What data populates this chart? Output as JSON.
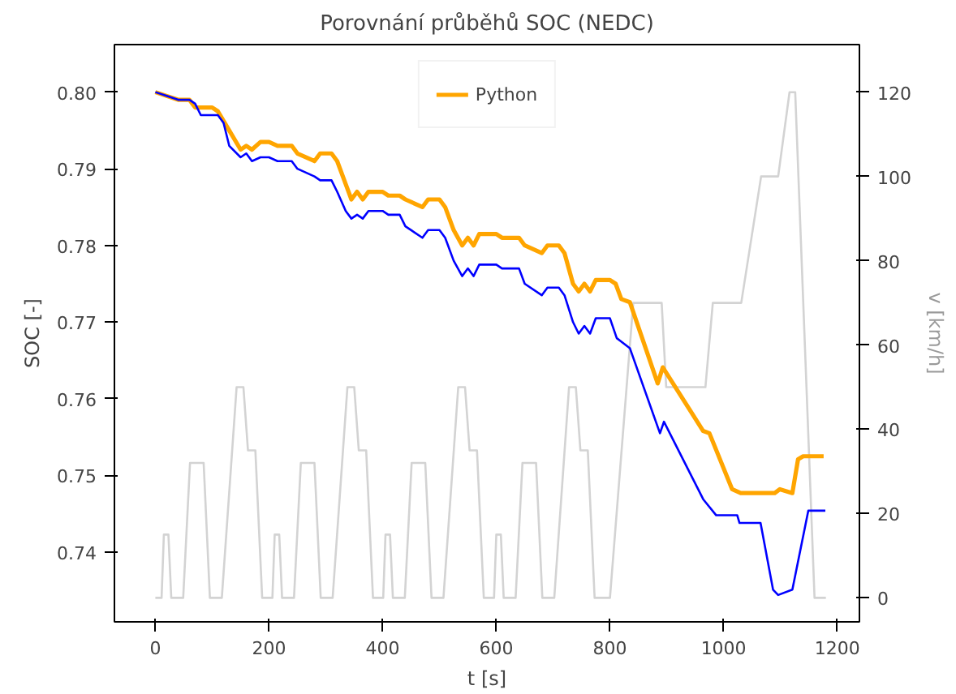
{
  "chart_data": {
    "type": "line",
    "title": "Porovnání průběhů SOC (NEDC)",
    "xlabel": "t [s]",
    "ylabel": "SOC [-]",
    "y2label": "v [km/h]",
    "xlim": [
      -72,
      1239
    ],
    "xticks": [
      0,
      200,
      400,
      600,
      800,
      1000,
      1200
    ],
    "ylim": [
      0.7309,
      0.8062
    ],
    "yticks": [
      {
        "value": 0.74,
        "label": "0.74"
      },
      {
        "value": 0.75,
        "label": "0.75"
      },
      {
        "value": 0.76,
        "label": "0.76"
      },
      {
        "value": 0.77,
        "label": "0.77"
      },
      {
        "value": 0.78,
        "label": "0.78"
      },
      {
        "value": 0.79,
        "label": "0.79"
      },
      {
        "value": 0.8,
        "label": "0.80"
      }
    ],
    "y2lim": [
      -5.7,
      131.3
    ],
    "y2ticks": [
      0,
      20,
      40,
      60,
      80,
      100,
      120
    ],
    "grid": false,
    "legend": "top",
    "marker": "none",
    "line_style": "solid",
    "series": [
      {
        "name": "Python",
        "color": "#ffa500",
        "x": [
          0,
          20,
          40,
          60,
          70,
          80,
          100,
          110,
          130,
          150,
          160,
          170,
          185,
          200,
          215,
          240,
          250,
          280,
          290,
          310,
          320,
          335,
          345,
          355,
          365,
          375,
          400,
          410,
          430,
          440,
          470,
          480,
          500,
          510,
          525,
          540,
          550,
          560,
          570,
          600,
          610,
          640,
          650,
          680,
          690,
          710,
          720,
          735,
          745,
          755,
          765,
          775,
          800,
          810,
          820,
          835,
          884,
          893,
          964,
          975,
          1015,
          1030,
          1090,
          1099,
          1121,
          1131,
          1140,
          1176
        ],
        "values": [
          0.8,
          0.7995,
          0.799,
          0.799,
          0.798,
          0.798,
          0.798,
          0.7975,
          0.795,
          0.7925,
          0.793,
          0.7925,
          0.7935,
          0.7935,
          0.793,
          0.793,
          0.792,
          0.791,
          0.792,
          0.792,
          0.791,
          0.788,
          0.786,
          0.787,
          0.786,
          0.787,
          0.787,
          0.7865,
          0.7865,
          0.786,
          0.785,
          0.786,
          0.786,
          0.785,
          0.782,
          0.78,
          0.781,
          0.78,
          0.7815,
          0.7815,
          0.781,
          0.781,
          0.78,
          0.779,
          0.78,
          0.78,
          0.779,
          0.775,
          0.774,
          0.775,
          0.774,
          0.7755,
          0.7755,
          0.775,
          0.773,
          0.7726,
          0.762,
          0.7641,
          0.7558,
          0.7555,
          0.7482,
          0.7477,
          0.7477,
          0.7482,
          0.7477,
          0.7521,
          0.7525,
          0.7525
        ]
      },
      {
        "color": "#0000ff",
        "x": [
          0,
          20,
          40,
          60,
          70,
          80,
          110,
          120,
          130,
          150,
          160,
          170,
          185,
          200,
          215,
          240,
          250,
          280,
          290,
          310,
          320,
          335,
          345,
          355,
          365,
          375,
          400,
          410,
          430,
          440,
          470,
          480,
          500,
          510,
          525,
          540,
          550,
          560,
          570,
          600,
          610,
          640,
          650,
          680,
          690,
          710,
          720,
          735,
          745,
          755,
          765,
          775,
          800,
          812,
          835,
          888,
          895,
          964,
          987,
          1024,
          1028,
          1065,
          1087,
          1096,
          1121,
          1149,
          1179
        ],
        "values": [
          0.8,
          0.7995,
          0.799,
          0.799,
          0.7985,
          0.797,
          0.797,
          0.796,
          0.793,
          0.7915,
          0.792,
          0.791,
          0.7915,
          0.7915,
          0.791,
          0.791,
          0.79,
          0.789,
          0.7885,
          0.7885,
          0.787,
          0.7845,
          0.7835,
          0.784,
          0.7835,
          0.7845,
          0.7845,
          0.784,
          0.784,
          0.7825,
          0.781,
          0.782,
          0.782,
          0.781,
          0.778,
          0.776,
          0.777,
          0.776,
          0.7775,
          0.7775,
          0.777,
          0.777,
          0.775,
          0.7735,
          0.7745,
          0.7745,
          0.7735,
          0.77,
          0.7685,
          0.7695,
          0.7685,
          0.7705,
          0.7705,
          0.7679,
          0.7666,
          0.7555,
          0.757,
          0.7469,
          0.7448,
          0.7448,
          0.7438,
          0.7438,
          0.7351,
          0.7344,
          0.7351,
          0.7454,
          0.7454
        ]
      },
      {
        "color": "#d3d3d3",
        "axis": "y2",
        "x": [
          0,
          11,
          15,
          23,
          28,
          49,
          61,
          85,
          96,
          117,
          143,
          155,
          163,
          176,
          188,
          206,
          210,
          218,
          223,
          244,
          256,
          280,
          291,
          312,
          338,
          350,
          358,
          371,
          383,
          401,
          405,
          413,
          418,
          439,
          451,
          475,
          486,
          507,
          533,
          545,
          553,
          566,
          578,
          596,
          600,
          608,
          613,
          634,
          646,
          670,
          681,
          702,
          728,
          740,
          748,
          761,
          773,
          800,
          841,
          891,
          899,
          968,
          981,
          1031,
          1066,
          1096,
          1116,
          1126,
          1160,
          1180
        ],
        "values": [
          0,
          0,
          15,
          15,
          0,
          0,
          32,
          32,
          0,
          0,
          50,
          50,
          35,
          35,
          0,
          0,
          15,
          15,
          0,
          0,
          32,
          32,
          0,
          0,
          50,
          50,
          35,
          35,
          0,
          0,
          15,
          15,
          0,
          0,
          32,
          32,
          0,
          0,
          50,
          50,
          35,
          35,
          0,
          0,
          15,
          15,
          0,
          0,
          32,
          32,
          0,
          0,
          50,
          50,
          35,
          35,
          0,
          0,
          70,
          70,
          50,
          50,
          70,
          70,
          100,
          100,
          120,
          120,
          0,
          0
        ]
      }
    ]
  }
}
